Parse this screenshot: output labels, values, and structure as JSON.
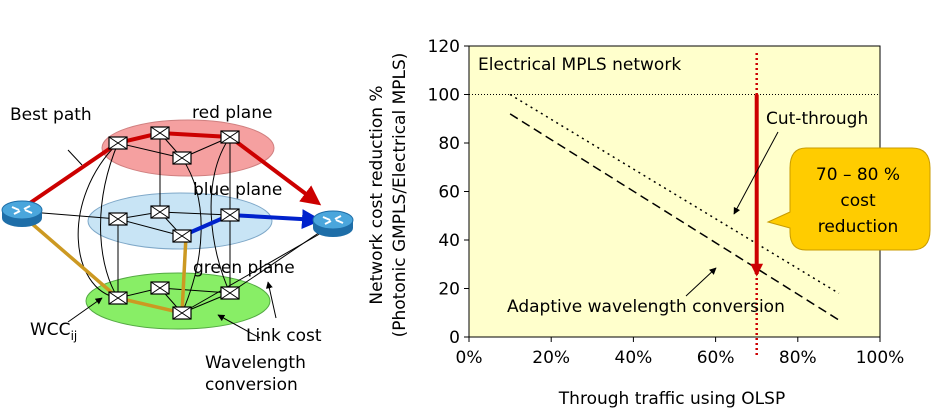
{
  "diagram": {
    "labels": {
      "best_path": "Best path",
      "red_plane": "red plane",
      "blue_plane": "blue plane",
      "green_plane": "green plane",
      "wcc": "WCC",
      "wcc_sub": "ij",
      "link_cost": "Link cost",
      "wavelength_line1": "Wavelength",
      "wavelength_line2": "conversion"
    },
    "colors": {
      "red_plane": "#f5a0a0",
      "blue_plane": "#c8e4f5",
      "green_plane": "#88ee66",
      "red_path": "#cc0000",
      "blue_path": "#0022cc",
      "gold_path": "#cc9922",
      "router": "#2e8ec8"
    }
  },
  "chart_data": {
    "type": "line",
    "xlabel": "Through traffic using OLSP",
    "ylabel_line1": "Network cost reduction %",
    "ylabel_line2": "(Photonic GMPLS/Electrical MPLS)",
    "xlim": [
      0,
      100
    ],
    "ylim": [
      0,
      120
    ],
    "x_ticks": [
      "0%",
      "20%",
      "40%",
      "60%",
      "80%",
      "100%"
    ],
    "y_ticks": [
      "0",
      "20",
      "40",
      "60",
      "80",
      "100",
      "120"
    ],
    "background": "#ffffcc",
    "series": [
      {
        "name": "Electrical MPLS network",
        "style": "dotted-thin",
        "x": [
          0,
          100
        ],
        "y": [
          100,
          100
        ]
      },
      {
        "name": "Cut-through",
        "style": "dotted",
        "x": [
          10,
          90
        ],
        "y": [
          100,
          18
        ]
      },
      {
        "name": "Adaptive wavelength conversion",
        "style": "dashed",
        "x": [
          10,
          90
        ],
        "y": [
          92,
          7
        ]
      }
    ],
    "marker_x": 70,
    "arrow": {
      "x": 70,
      "from_y": 100,
      "to_y": 26
    },
    "callout": {
      "line1": "70 – 80 %",
      "line2": "cost",
      "line3": "reduction"
    },
    "colors": {
      "marker": "#cc0000",
      "callout_fill": "#ffcc00"
    }
  }
}
